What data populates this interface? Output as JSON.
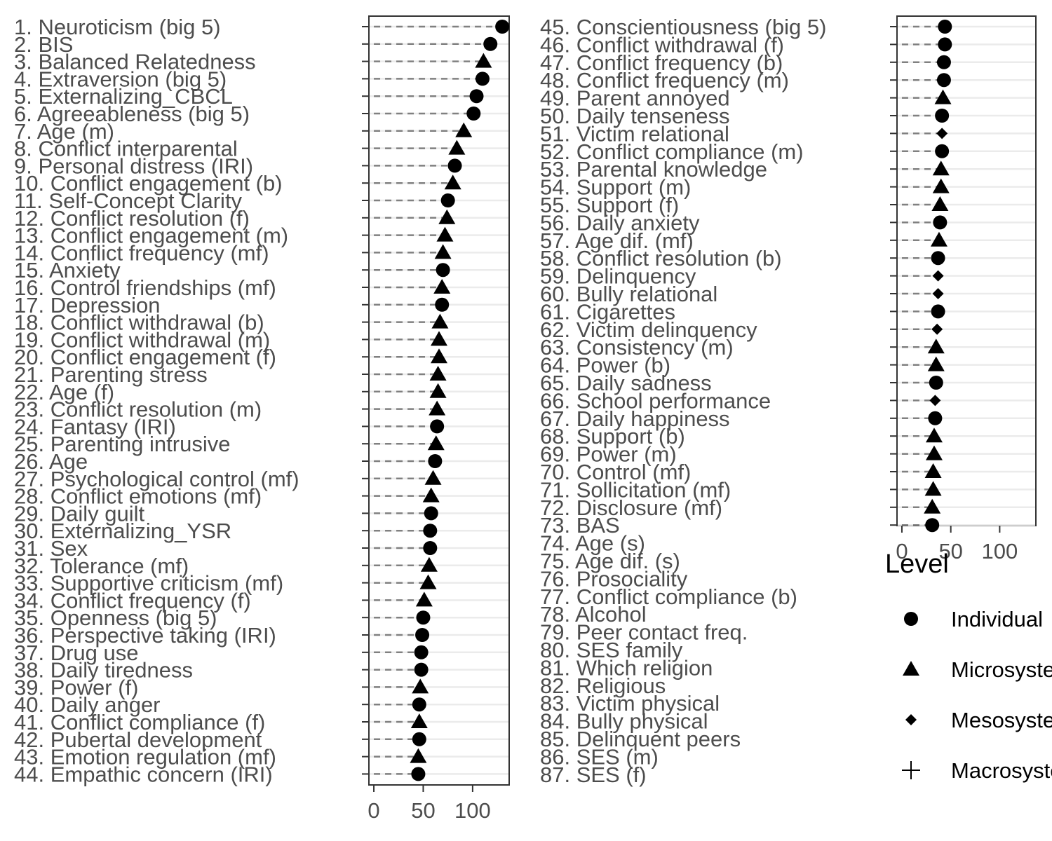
{
  "chart_data": {
    "type": "scatter",
    "xlim": [
      -5,
      137
    ],
    "x_ticks": [
      0,
      50,
      100
    ],
    "grid": "horizontal",
    "legend": {
      "title": "Level",
      "position": "right",
      "entries": [
        {
          "label": "Individual",
          "shape": "circle"
        },
        {
          "label": "Microsystem",
          "shape": "triangle"
        },
        {
          "label": "Mesosystem",
          "shape": "diamond"
        },
        {
          "label": "Macrosystem",
          "shape": "cross"
        }
      ]
    },
    "panels": [
      {
        "items": [
          {
            "label": "1. Neuroticism (big 5)",
            "value": 130,
            "level": "Individual"
          },
          {
            "label": "2. BIS",
            "value": 118,
            "level": "Individual"
          },
          {
            "label": "3. Balanced Relatedness",
            "value": 111,
            "level": "Microsystem"
          },
          {
            "label": "4. Extraversion (big 5)",
            "value": 110,
            "level": "Individual"
          },
          {
            "label": "5. Externalizing_CBCL",
            "value": 104,
            "level": "Individual"
          },
          {
            "label": "6. Agreeableness (big 5)",
            "value": 101,
            "level": "Individual"
          },
          {
            "label": "7. Age (m)",
            "value": 91,
            "level": "Microsystem"
          },
          {
            "label": "8. Conflict interparental",
            "value": 84,
            "level": "Microsystem"
          },
          {
            "label": "9. Personal distress (IRI)",
            "value": 82,
            "level": "Individual"
          },
          {
            "label": "10. Conflict engagement (b)",
            "value": 80,
            "level": "Microsystem"
          },
          {
            "label": "11. Self-Concept Clarity",
            "value": 75,
            "level": "Individual"
          },
          {
            "label": "12. Conflict resolution (f)",
            "value": 74,
            "level": "Microsystem"
          },
          {
            "label": "13. Conflict engagement (m)",
            "value": 72,
            "level": "Microsystem"
          },
          {
            "label": "14. Conflict frequency (mf)",
            "value": 70,
            "level": "Microsystem"
          },
          {
            "label": "15. Anxiety",
            "value": 70,
            "level": "Individual"
          },
          {
            "label": "16. Control friendships (mf)",
            "value": 69,
            "level": "Microsystem"
          },
          {
            "label": "17. Depression",
            "value": 69,
            "level": "Individual"
          },
          {
            "label": "18. Conflict withdrawal (b)",
            "value": 67,
            "level": "Microsystem"
          },
          {
            "label": "19. Conflict withdrawal (m)",
            "value": 66,
            "level": "Microsystem"
          },
          {
            "label": "20. Conflict engagement (f)",
            "value": 66,
            "level": "Microsystem"
          },
          {
            "label": "21. Parenting stress",
            "value": 65,
            "level": "Microsystem"
          },
          {
            "label": "22. Age (f)",
            "value": 65,
            "level": "Microsystem"
          },
          {
            "label": "23. Conflict resolution (m)",
            "value": 64,
            "level": "Microsystem"
          },
          {
            "label": "24. Fantasy (IRI)",
            "value": 64,
            "level": "Individual"
          },
          {
            "label": "25. Parenting intrusive",
            "value": 63,
            "level": "Microsystem"
          },
          {
            "label": "26. Age",
            "value": 62,
            "level": "Individual"
          },
          {
            "label": "27. Psychological control (mf)",
            "value": 60,
            "level": "Microsystem"
          },
          {
            "label": "28. Conflict emotions (mf)",
            "value": 58,
            "level": "Microsystem"
          },
          {
            "label": "29. Daily guilt",
            "value": 58,
            "level": "Individual"
          },
          {
            "label": "30. Externalizing_YSR",
            "value": 57,
            "level": "Individual"
          },
          {
            "label": "31. Sex",
            "value": 57,
            "level": "Individual"
          },
          {
            "label": "32. Tolerance (mf)",
            "value": 56,
            "level": "Microsystem"
          },
          {
            "label": "33. Supportive criticism (mf)",
            "value": 55,
            "level": "Microsystem"
          },
          {
            "label": "34. Conflict frequency (f)",
            "value": 51,
            "level": "Microsystem"
          },
          {
            "label": "35. Openness (big 5)",
            "value": 50,
            "level": "Individual"
          },
          {
            "label": "36. Perspective taking (IRI)",
            "value": 49,
            "level": "Individual"
          },
          {
            "label": "37. Drug use",
            "value": 48,
            "level": "Individual"
          },
          {
            "label": "38. Daily tiredness",
            "value": 48,
            "level": "Individual"
          },
          {
            "label": "39. Power (f)",
            "value": 47,
            "level": "Microsystem"
          },
          {
            "label": "40. Daily anger",
            "value": 46,
            "level": "Individual"
          },
          {
            "label": "41. Conflict compliance (f)",
            "value": 46,
            "level": "Microsystem"
          },
          {
            "label": "42. Pubertal development",
            "value": 46,
            "level": "Individual"
          },
          {
            "label": "43. Emotion regulation (mf)",
            "value": 45,
            "level": "Microsystem"
          },
          {
            "label": "44. Empathic concern (IRI)",
            "value": 45,
            "level": "Individual"
          }
        ]
      },
      {
        "items": [
          {
            "label": "45. Conscientiousness (big 5)",
            "value": 44,
            "level": "Individual"
          },
          {
            "label": "46. Conflict withdrawal (f)",
            "value": 44,
            "level": "Individual"
          },
          {
            "label": "47. Conflict frequency (b)",
            "value": 43,
            "level": "Individual"
          },
          {
            "label": "48. Conflict frequency (m)",
            "value": 43,
            "level": "Individual"
          },
          {
            "label": "49. Parent annoyed",
            "value": 42,
            "level": "Microsystem"
          },
          {
            "label": "50. Daily tenseness",
            "value": 41,
            "level": "Individual"
          },
          {
            "label": "51. Victim relational",
            "value": 41,
            "level": "Mesosystem"
          },
          {
            "label": "52. Conflict compliance (m)",
            "value": 41,
            "level": "Individual"
          },
          {
            "label": "53. Parental knowledge",
            "value": 40,
            "level": "Microsystem"
          },
          {
            "label": "54. Support (m)",
            "value": 40,
            "level": "Microsystem"
          },
          {
            "label": "55. Support (f)",
            "value": 39,
            "level": "Microsystem"
          },
          {
            "label": "56. Daily anxiety",
            "value": 39,
            "level": "Individual"
          },
          {
            "label": "57. Age dif. (mf)",
            "value": 38,
            "level": "Microsystem"
          },
          {
            "label": "58. Conflict resolution (b)",
            "value": 37,
            "level": "Individual"
          },
          {
            "label": "59. Delinquency",
            "value": 37,
            "level": "Mesosystem"
          },
          {
            "label": "60. Bully relational",
            "value": 37,
            "level": "Mesosystem"
          },
          {
            "label": "61. Cigarettes",
            "value": 37,
            "level": "Individual"
          },
          {
            "label": "62. Victim delinquency",
            "value": 36,
            "level": "Mesosystem"
          },
          {
            "label": "63. Consistency (m)",
            "value": 35,
            "level": "Microsystem"
          },
          {
            "label": "64. Power (b)",
            "value": 35,
            "level": "Microsystem"
          },
          {
            "label": "65. Daily sadness",
            "value": 35,
            "level": "Individual"
          },
          {
            "label": "66. School performance",
            "value": 34,
            "level": "Mesosystem"
          },
          {
            "label": "67. Daily happiness",
            "value": 34,
            "level": "Individual"
          },
          {
            "label": "68. Support (b)",
            "value": 33,
            "level": "Microsystem"
          },
          {
            "label": "69. Power (m)",
            "value": 33,
            "level": "Microsystem"
          },
          {
            "label": "70. Control (mf)",
            "value": 32,
            "level": "Microsystem"
          },
          {
            "label": "71. Sollicitation (mf)",
            "value": 32,
            "level": "Microsystem"
          },
          {
            "label": "72. Disclosure (mf)",
            "value": 31,
            "level": "Microsystem"
          },
          {
            "label": "73. BAS",
            "value": 31,
            "level": "Individual"
          },
          {
            "label": "74. Age (s)",
            "value": null,
            "level": null
          },
          {
            "label": "75. Age dif. (s)",
            "value": null,
            "level": null
          },
          {
            "label": "76. Prosociality",
            "value": null,
            "level": null
          },
          {
            "label": "77. Conflict compliance (b)",
            "value": null,
            "level": null
          },
          {
            "label": "78. Alcohol",
            "value": null,
            "level": null
          },
          {
            "label": "79. Peer contact freq.",
            "value": null,
            "level": null
          },
          {
            "label": "80. SES family",
            "value": null,
            "level": null
          },
          {
            "label": "81. Which religion",
            "value": null,
            "level": null
          },
          {
            "label": "82. Religious",
            "value": null,
            "level": null
          },
          {
            "label": "83. Victim physical",
            "value": null,
            "level": null
          },
          {
            "label": "84. Bully physical",
            "value": null,
            "level": null
          },
          {
            "label": "85. Delinquent peers",
            "value": null,
            "level": null
          },
          {
            "label": "86. SES (m)",
            "value": null,
            "level": null
          },
          {
            "label": "87. SES (f)",
            "value": null,
            "level": null
          }
        ]
      }
    ]
  }
}
